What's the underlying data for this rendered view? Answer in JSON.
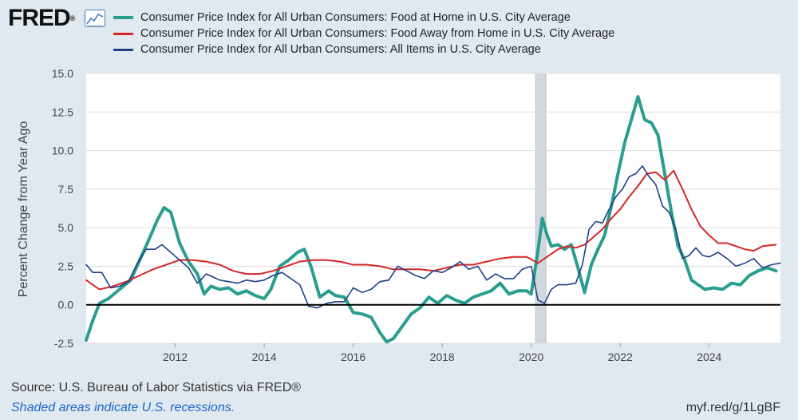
{
  "header": {
    "logo": "FRED",
    "logo_mark": "®",
    "graph_icon": "line-graph-icon"
  },
  "colors": {
    "food_home": "#2a9d8f",
    "food_away": "#d62728",
    "all_items": "#1f3f8a",
    "background": "#e1e9f0",
    "plot_background": "#ffffff",
    "recession_shade": "#d3d8de",
    "link": "#1a66c9"
  },
  "chart_data": {
    "type": "line",
    "title": "",
    "xlabel": "",
    "ylabel": "Percent Change from Year Ago",
    "xlim": [
      2010,
      2025.6
    ],
    "ylim": [
      -2.5,
      15.0
    ],
    "yticks": [
      -2.5,
      0.0,
      2.5,
      5.0,
      7.5,
      10.0,
      12.5,
      15.0
    ],
    "ytick_labels": [
      "-2.5",
      "0.0",
      "2.5",
      "5.0",
      "7.5",
      "10.0",
      "12.5",
      "15.0"
    ],
    "xticks": [
      2012,
      2014,
      2016,
      2018,
      2020,
      2022,
      2024
    ],
    "xtick_labels": [
      "2012",
      "2014",
      "2016",
      "2018",
      "2020",
      "2022",
      "2024"
    ],
    "grid": true,
    "zero_line": true,
    "recessions": [
      [
        2020.1,
        2020.33
      ]
    ],
    "series": [
      {
        "name": "Consumer Price Index for All Urban Consumers: Food at Home in U.S. City Average",
        "color": "#2a9d8f",
        "width": 4,
        "x": [
          2010.0,
          2010.15,
          2010.3,
          2010.5,
          2010.75,
          2011.0,
          2011.25,
          2011.45,
          2011.6,
          2011.75,
          2011.9,
          2012.1,
          2012.3,
          2012.5,
          2012.65,
          2012.8,
          2013.0,
          2013.2,
          2013.4,
          2013.6,
          2013.8,
          2014.0,
          2014.15,
          2014.35,
          2014.55,
          2014.75,
          2014.9,
          2015.05,
          2015.25,
          2015.45,
          2015.6,
          2015.8,
          2016.0,
          2016.2,
          2016.4,
          2016.6,
          2016.75,
          2016.9,
          2017.1,
          2017.3,
          2017.5,
          2017.7,
          2017.9,
          2018.1,
          2018.3,
          2018.5,
          2018.7,
          2018.9,
          2019.1,
          2019.3,
          2019.5,
          2019.7,
          2019.9,
          2020.0,
          2020.15,
          2020.25,
          2020.35,
          2020.45,
          2020.6,
          2020.75,
          2020.9,
          2021.05,
          2021.2,
          2021.35,
          2021.5,
          2021.65,
          2021.8,
          2021.95,
          2022.1,
          2022.25,
          2022.4,
          2022.55,
          2022.7,
          2022.85,
          2023.0,
          2023.15,
          2023.3,
          2023.45,
          2023.6,
          2023.75,
          2023.9,
          2024.1,
          2024.3,
          2024.5,
          2024.7,
          2024.9,
          2025.1,
          2025.3,
          2025.5
        ],
        "y": [
          -2.3,
          -1.0,
          0.1,
          0.4,
          1.0,
          1.6,
          3.2,
          4.5,
          5.5,
          6.3,
          6.0,
          4.0,
          2.8,
          2.0,
          0.7,
          1.2,
          1.0,
          1.1,
          0.7,
          0.9,
          0.6,
          0.4,
          1.0,
          2.5,
          2.9,
          3.4,
          3.6,
          2.5,
          0.5,
          0.9,
          0.6,
          0.5,
          -0.5,
          -0.6,
          -0.8,
          -1.8,
          -2.4,
          -2.2,
          -1.4,
          -0.6,
          -0.2,
          0.5,
          0.1,
          0.6,
          0.3,
          0.1,
          0.5,
          0.7,
          0.9,
          1.4,
          0.7,
          0.9,
          0.9,
          0.7,
          3.5,
          5.6,
          4.6,
          3.8,
          3.9,
          3.6,
          3.9,
          2.4,
          0.8,
          2.6,
          3.6,
          4.5,
          6.4,
          8.5,
          10.5,
          12.0,
          13.5,
          12.0,
          11.8,
          11.0,
          8.5,
          6.0,
          3.8,
          2.9,
          1.6,
          1.3,
          1.0,
          1.1,
          1.0,
          1.4,
          1.3,
          1.9,
          2.2,
          2.4,
          2.2
        ]
      },
      {
        "name": "Consumer Price Index for All Urban Consumers: Food Away from Home in U.S. City Average",
        "color": "#d62728",
        "width": 2,
        "x": [
          2010.0,
          2010.3,
          2010.6,
          2010.9,
          2011.2,
          2011.5,
          2011.8,
          2012.1,
          2012.4,
          2012.7,
          2013.0,
          2013.3,
          2013.6,
          2013.9,
          2014.2,
          2014.5,
          2014.8,
          2015.1,
          2015.4,
          2015.7,
          2016.0,
          2016.3,
          2016.6,
          2016.9,
          2017.2,
          2017.5,
          2017.8,
          2018.1,
          2018.4,
          2018.7,
          2019.0,
          2019.3,
          2019.6,
          2019.9,
          2020.15,
          2020.4,
          2020.6,
          2020.8,
          2021.0,
          2021.2,
          2021.4,
          2021.6,
          2021.8,
          2022.0,
          2022.2,
          2022.4,
          2022.6,
          2022.8,
          2023.0,
          2023.2,
          2023.4,
          2023.6,
          2023.8,
          2024.0,
          2024.2,
          2024.4,
          2024.6,
          2024.8,
          2025.0,
          2025.2,
          2025.5
        ],
        "y": [
          1.6,
          1.0,
          1.2,
          1.5,
          1.9,
          2.3,
          2.6,
          2.9,
          2.9,
          2.8,
          2.6,
          2.2,
          2.0,
          2.0,
          2.2,
          2.5,
          2.8,
          2.9,
          2.9,
          2.8,
          2.6,
          2.6,
          2.5,
          2.3,
          2.3,
          2.3,
          2.2,
          2.4,
          2.6,
          2.6,
          2.8,
          3.0,
          3.1,
          3.1,
          2.7,
          3.2,
          3.6,
          3.8,
          3.7,
          3.9,
          4.4,
          4.9,
          5.6,
          6.2,
          7.0,
          7.7,
          8.5,
          8.6,
          8.1,
          8.7,
          7.5,
          6.2,
          5.1,
          4.5,
          4.0,
          4.0,
          3.8,
          3.6,
          3.5,
          3.8,
          3.9
        ]
      },
      {
        "name": "Consumer Price Index for All Urban Consumers: All Items in U.S. City Average",
        "color": "#1f3f8a",
        "width": 1.6,
        "x": [
          2010.0,
          2010.15,
          2010.35,
          2010.55,
          2010.75,
          2010.95,
          2011.15,
          2011.35,
          2011.55,
          2011.7,
          2011.9,
          2012.1,
          2012.3,
          2012.5,
          2012.7,
          2012.85,
          2013.0,
          2013.2,
          2013.4,
          2013.6,
          2013.8,
          2014.0,
          2014.2,
          2014.4,
          2014.6,
          2014.8,
          2015.0,
          2015.2,
          2015.4,
          2015.6,
          2015.8,
          2016.0,
          2016.2,
          2016.4,
          2016.6,
          2016.8,
          2017.0,
          2017.2,
          2017.4,
          2017.6,
          2017.8,
          2018.0,
          2018.2,
          2018.4,
          2018.6,
          2018.8,
          2019.0,
          2019.2,
          2019.4,
          2019.6,
          2019.8,
          2020.0,
          2020.15,
          2020.3,
          2020.45,
          2020.6,
          2020.8,
          2021.0,
          2021.15,
          2021.3,
          2021.45,
          2021.6,
          2021.75,
          2021.9,
          2022.05,
          2022.2,
          2022.35,
          2022.5,
          2022.65,
          2022.8,
          2022.95,
          2023.1,
          2023.25,
          2023.4,
          2023.55,
          2023.7,
          2023.85,
          2024.0,
          2024.2,
          2024.4,
          2024.6,
          2024.8,
          2025.0,
          2025.2,
          2025.4,
          2025.6
        ],
        "y": [
          2.6,
          2.1,
          2.1,
          1.1,
          1.2,
          1.5,
          2.7,
          3.6,
          3.6,
          3.9,
          3.4,
          2.9,
          2.4,
          1.4,
          2.0,
          1.8,
          1.6,
          1.5,
          1.4,
          1.6,
          1.5,
          1.6,
          1.9,
          2.1,
          1.7,
          1.3,
          -0.1,
          -0.2,
          0.1,
          0.2,
          0.2,
          1.1,
          0.8,
          1.0,
          1.5,
          1.6,
          2.5,
          2.2,
          1.9,
          1.7,
          2.2,
          2.1,
          2.4,
          2.8,
          2.3,
          2.5,
          1.6,
          2.0,
          1.7,
          1.7,
          2.3,
          2.5,
          0.3,
          0.1,
          1.0,
          1.3,
          1.3,
          1.4,
          2.6,
          4.9,
          5.4,
          5.3,
          6.2,
          7.0,
          7.5,
          8.3,
          8.5,
          9.0,
          8.3,
          7.8,
          6.4,
          6.0,
          4.9,
          3.0,
          3.2,
          3.7,
          3.2,
          3.1,
          3.4,
          3.0,
          2.5,
          2.7,
          3.0,
          2.4,
          2.6,
          2.7
        ]
      }
    ]
  },
  "footer": {
    "source": "Source: U.S. Bureau of Labor Statistics via FRED®",
    "recession_note": "Shaded areas indicate U.S. recessions.",
    "short_url": "myf.red/g/1LgBF"
  }
}
